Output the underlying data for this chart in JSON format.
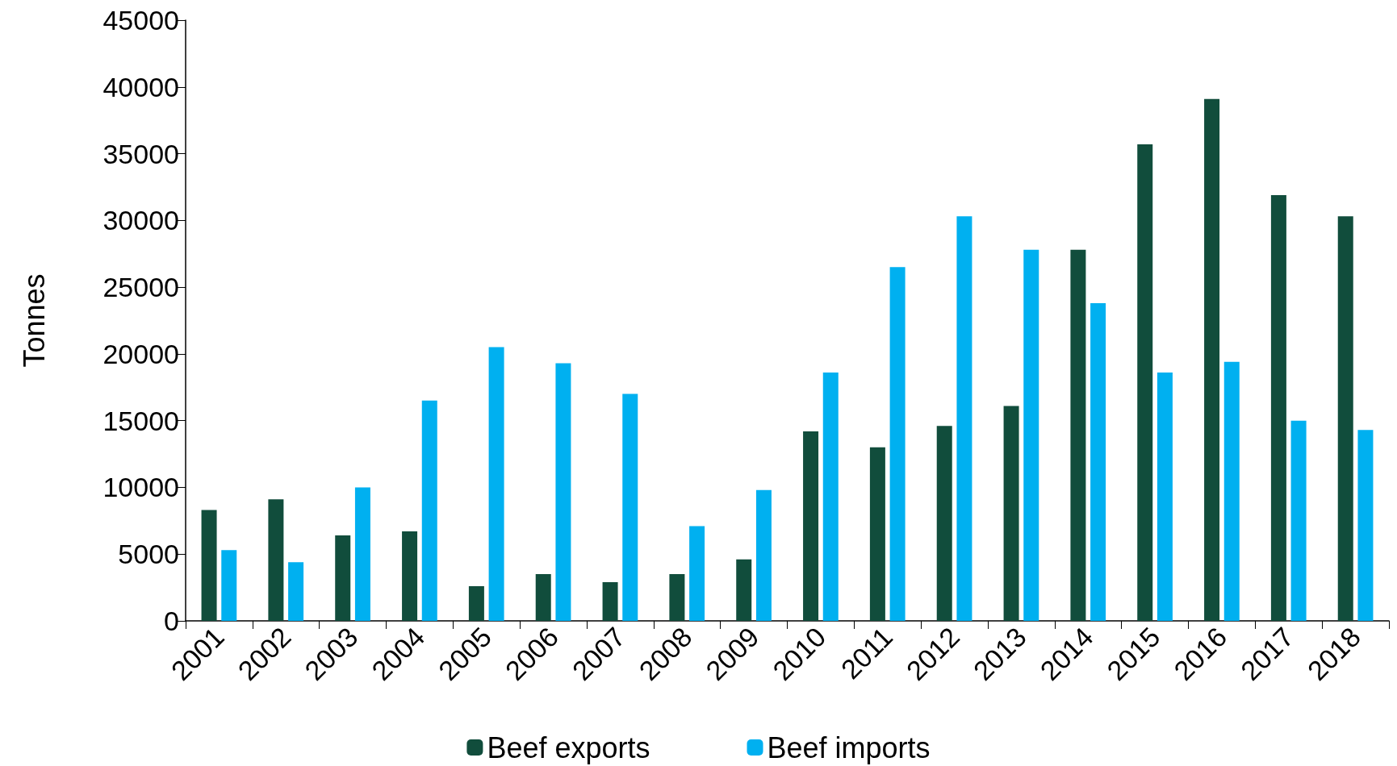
{
  "chart_data": {
    "type": "bar",
    "ylabel": "Tonnes",
    "categories": [
      "2001",
      "2002",
      "2003",
      "2004",
      "2005",
      "2006",
      "2007",
      "2008",
      "2009",
      "2010",
      "2011",
      "2012",
      "2013",
      "2014",
      "2015",
      "2016",
      "2017",
      "2018"
    ],
    "series": [
      {
        "name": "Beef exports",
        "color": "#114d3c",
        "values": [
          8300,
          9100,
          6400,
          6700,
          2600,
          3500,
          2900,
          3500,
          4600,
          14200,
          13000,
          14600,
          16100,
          27800,
          35700,
          39100,
          31900,
          30300
        ]
      },
      {
        "name": "Beef imports",
        "color": "#00b0f0",
        "values": [
          5300,
          4400,
          10000,
          16500,
          20500,
          19300,
          17000,
          7100,
          9800,
          18600,
          26500,
          30300,
          27800,
          23800,
          18600,
          19400,
          15000,
          14300
        ]
      }
    ],
    "ylim": [
      0,
      45000
    ],
    "yticks": [
      0,
      5000,
      10000,
      15000,
      20000,
      25000,
      30000,
      35000,
      40000,
      45000
    ],
    "grid": false,
    "legend": "bottom"
  }
}
